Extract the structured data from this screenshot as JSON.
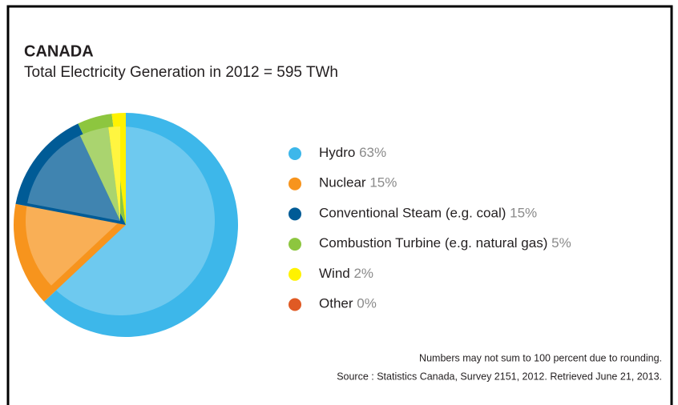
{
  "chart_data": {
    "type": "pie",
    "title": "CANADA",
    "subtitle": "Total Electricity Generation in 2012 = 595 TWh",
    "categories": [
      "Hydro",
      "Nuclear",
      "Conventional Steam (e.g. coal)",
      "Combustion Turbine (e.g. natural gas)",
      "Wind",
      "Other"
    ],
    "values": [
      63,
      15,
      15,
      5,
      2,
      0
    ],
    "value_labels": [
      "63%",
      "15%",
      "15%",
      "5%",
      "2%",
      "0%"
    ],
    "colors": [
      "#3db7ea",
      "#f7941d",
      "#005b96",
      "#8dc63f",
      "#fff200",
      "#e05a24"
    ],
    "notes": [
      "Numbers may not sum to 100 percent due to rounding.",
      "Source : Statistics Canada, Survey 2151, 2012. Retrieved June 21, 2013."
    ]
  }
}
